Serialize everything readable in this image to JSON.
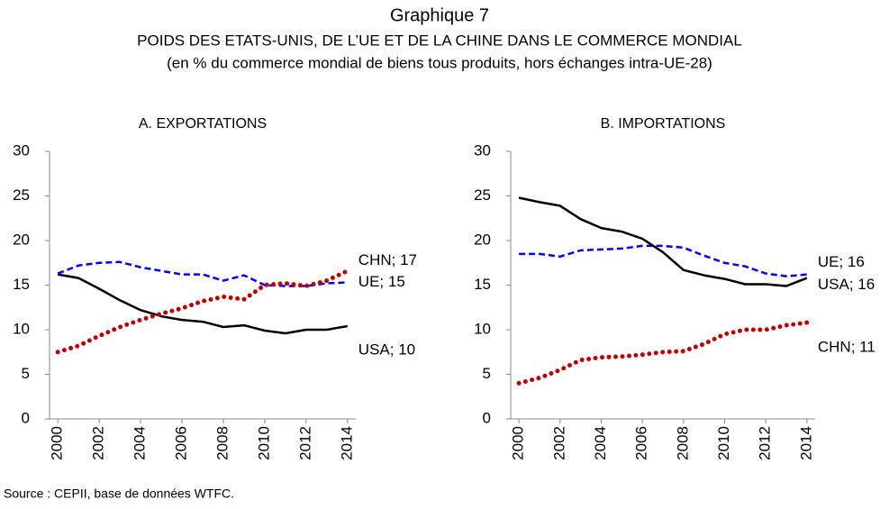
{
  "header": {
    "title": "Graphique 7",
    "subtitle": [
      "POIDS DES ETATS-UNIS, DE L’UE ET DE LA CHINE DANS LE COMMERCE MONDIAL",
      "(en % du commerce mondial de biens tous produits, hors échanges intra-UE-28)"
    ]
  },
  "source": "Source : CEPII, base de données WTFC.",
  "chart_data": [
    {
      "type": "line",
      "title": "A. EXPORTATIONS",
      "x": [
        2000,
        2001,
        2002,
        2003,
        2004,
        2005,
        2006,
        2007,
        2008,
        2009,
        2010,
        2011,
        2012,
        2013,
        2014
      ],
      "xlim": [
        1999.6,
        2014.4
      ],
      "xticks": [
        2000,
        2002,
        2004,
        2006,
        2008,
        2010,
        2012,
        2014
      ],
      "ylim": [
        0,
        30
      ],
      "yticks": [
        0,
        5,
        10,
        15,
        20,
        25,
        30
      ],
      "grid": false,
      "series": [
        {
          "name": "USA",
          "color": "#000000",
          "dash": "solid",
          "end_label": "USA; 10",
          "values": [
            16.2,
            15.8,
            14.6,
            13.3,
            12.2,
            11.5,
            11.1,
            10.9,
            10.3,
            10.5,
            9.9,
            9.6,
            10.0,
            10.0,
            10.4
          ]
        },
        {
          "name": "UE",
          "color": "#0000ff",
          "dash": "dashed",
          "end_label": "UE; 15",
          "values": [
            16.3,
            17.2,
            17.5,
            17.6,
            17.0,
            16.6,
            16.2,
            16.2,
            15.5,
            16.1,
            15.0,
            14.9,
            14.9,
            15.2,
            15.3
          ]
        },
        {
          "name": "CHN",
          "color": "#c00000",
          "dash": "dotted",
          "end_label": "CHN; 17",
          "values": [
            7.5,
            8.2,
            9.3,
            10.3,
            11.1,
            11.8,
            12.4,
            13.2,
            13.7,
            13.4,
            15.0,
            15.2,
            14.9,
            15.5,
            16.6
          ]
        }
      ]
    },
    {
      "type": "line",
      "title": "B. IMPORTATIONS",
      "x": [
        2000,
        2001,
        2002,
        2003,
        2004,
        2005,
        2006,
        2007,
        2008,
        2009,
        2010,
        2011,
        2012,
        2013,
        2014
      ],
      "xlim": [
        1999.6,
        2014.4
      ],
      "xticks": [
        2000,
        2002,
        2004,
        2006,
        2008,
        2010,
        2012,
        2014
      ],
      "ylim": [
        0,
        30
      ],
      "yticks": [
        0,
        5,
        10,
        15,
        20,
        25,
        30
      ],
      "grid": false,
      "series": [
        {
          "name": "USA",
          "color": "#000000",
          "dash": "solid",
          "end_label": "USA; 16",
          "values": [
            24.8,
            24.3,
            23.9,
            22.4,
            21.4,
            21.0,
            20.2,
            18.7,
            16.7,
            16.1,
            15.7,
            15.1,
            15.1,
            14.9,
            15.8
          ]
        },
        {
          "name": "UE",
          "color": "#0000ff",
          "dash": "dashed",
          "end_label": "UE; 16",
          "values": [
            18.5,
            18.5,
            18.2,
            18.9,
            19.0,
            19.1,
            19.4,
            19.4,
            19.2,
            18.3,
            17.5,
            17.1,
            16.3,
            16.0,
            16.2
          ]
        },
        {
          "name": "CHN",
          "color": "#c00000",
          "dash": "dotted",
          "end_label": "CHN; 11",
          "values": [
            4.0,
            4.6,
            5.5,
            6.6,
            6.9,
            7.0,
            7.2,
            7.5,
            7.6,
            8.4,
            9.5,
            10.0,
            10.0,
            10.5,
            10.8
          ]
        }
      ]
    }
  ]
}
